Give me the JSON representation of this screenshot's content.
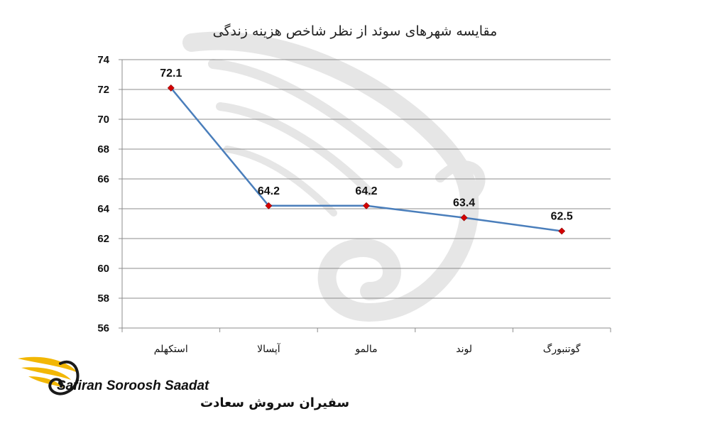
{
  "chart_data": {
    "type": "line",
    "title": "مقایسه شهرهای سوئد از نظر شاخص هزینه زندگی",
    "categories": [
      "استکهلم",
      "آپسالا",
      "مالمو",
      "لوند",
      "گوتنبورگ"
    ],
    "values": [
      72.1,
      64.2,
      64.2,
      63.4,
      62.5
    ],
    "data_labels": [
      "72.1",
      "64.2",
      "64.2",
      "63.4",
      "62.5"
    ],
    "ylim": [
      56,
      74
    ],
    "yticks": [
      56,
      58,
      60,
      62,
      64,
      66,
      68,
      70,
      72,
      74
    ],
    "grid": true,
    "line_color": "#4a7ebb",
    "marker_color": "#d40000",
    "xlabel": "",
    "ylabel": ""
  },
  "logo": {
    "name_en": "Safiran Soroosh Saadat",
    "name_fa": "سفیران سروش سعادت",
    "wing_color": "#f2b705"
  },
  "watermark": {
    "color": "#e2e2e2"
  }
}
